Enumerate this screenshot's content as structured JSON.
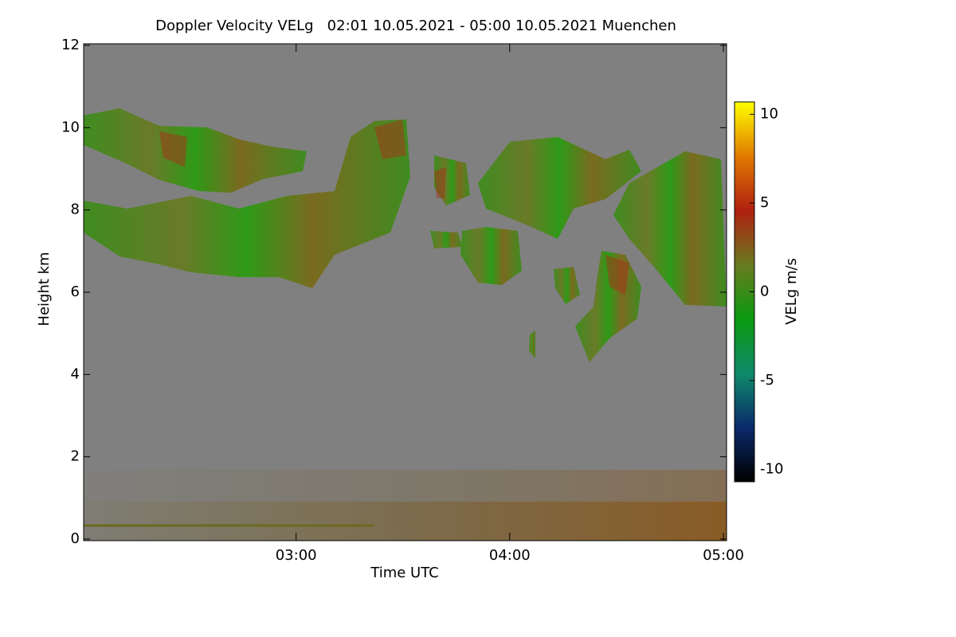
{
  "chart_data": {
    "type": "heatmap",
    "title": "Doppler Velocity VELg   02:01 10.05.2021 - 05:00 10.05.2021 Muenchen",
    "xlabel": "Time UTC",
    "ylabel": "Height km",
    "xlim": [
      2.0167,
      5.0
    ],
    "xticks": [
      {
        "value": 3,
        "label": "03:00"
      },
      {
        "value": 4,
        "label": "04:00"
      },
      {
        "value": 5,
        "label": "05:00"
      }
    ],
    "ylim": [
      0,
      12
    ],
    "yticks": [
      0,
      2,
      4,
      6,
      8,
      10,
      12
    ],
    "background": "#808080",
    "colorbar": {
      "label": "VELg m/s",
      "lim": [
        -10.7,
        10.7
      ],
      "ticks": [
        -10,
        -5,
        0,
        5,
        10
      ],
      "colors": [
        "#000000",
        "#0a2a6a",
        "#0f8a6a",
        "#0a9a10",
        "#6a7a20",
        "#b02010",
        "#e07a00",
        "#ffff00"
      ]
    }
  }
}
